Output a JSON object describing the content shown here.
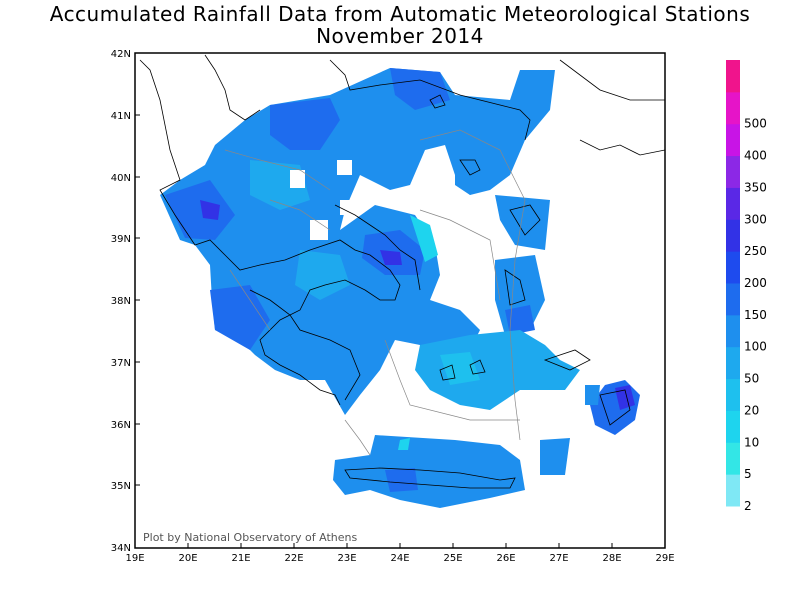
{
  "title_line1": "Accumulated Rainfall Data from Automatic Meteorological Stations",
  "title_line2": "November 2014",
  "credit": "Plot by National Observatory of Athens",
  "lat_labels": [
    "42N",
    "41N",
    "40N",
    "39N",
    "38N",
    "37N",
    "36N",
    "35N",
    "34N"
  ],
  "lon_labels": [
    "19E",
    "20E",
    "21E",
    "22E",
    "23E",
    "24E",
    "25E",
    "26E",
    "27E",
    "28E",
    "29E"
  ],
  "colorbar": {
    "labels": [
      "2",
      "5",
      "10",
      "20",
      "50",
      "100",
      "150",
      "200",
      "250",
      "300",
      "350",
      "400",
      "500"
    ],
    "colors": [
      "#7fe8f5",
      "#33e6e6",
      "#1ed4ee",
      "#1ec0ee",
      "#1ea9ee",
      "#1e8fee",
      "#1e6cee",
      "#1e4bee",
      "#3232e6",
      "#5a28e6",
      "#8c28e6",
      "#c814e6",
      "#e614c8",
      "#f0148c"
    ]
  }
}
